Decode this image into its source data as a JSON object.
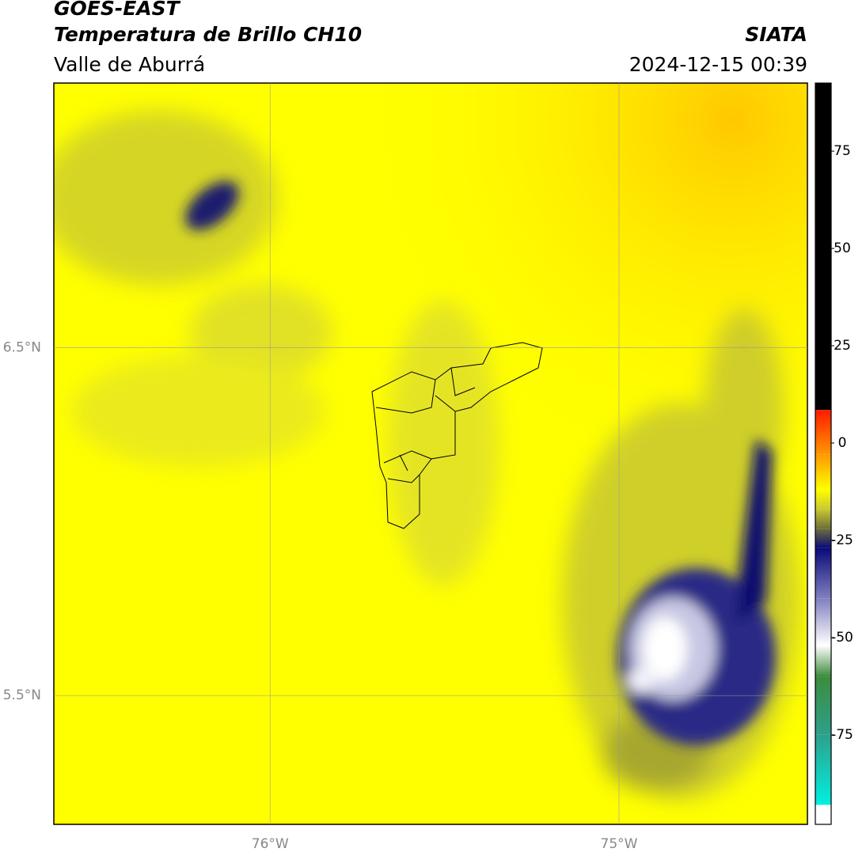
{
  "header": {
    "satellite": "GOES-EAST",
    "product": "Temperatura de Brillo CH10",
    "region": "Valle de Aburrá",
    "agency": "SIATA",
    "timestamp": "2024-12-15 00:39"
  },
  "map": {
    "lon_lim": [
      -76.62,
      -74.46
    ],
    "lat_lim": [
      5.13,
      7.26
    ],
    "lon_ticks": [
      {
        "value": -76,
        "label": "76°W"
      },
      {
        "value": -75,
        "label": "75°W"
      }
    ],
    "lat_ticks": [
      {
        "value": 6.5,
        "label": "6.5°N"
      },
      {
        "value": 5.5,
        "label": "5.5°N"
      }
    ]
  },
  "colorbar": {
    "lim": [
      -98,
      92.5
    ],
    "ticks": [
      75,
      50,
      25,
      0,
      -25,
      -50,
      -75
    ],
    "stops": [
      {
        "value": 92.5,
        "color": "#000000"
      },
      {
        "value": 8.5,
        "color": "#000000"
      },
      {
        "value": 8.5,
        "color": "#ff1a00"
      },
      {
        "value": -3,
        "color": "#ff9900"
      },
      {
        "value": -12,
        "color": "#ffff00"
      },
      {
        "value": -17,
        "color": "#c8c832"
      },
      {
        "value": -22,
        "color": "#6e6e3c"
      },
      {
        "value": -27,
        "color": "#0a0a78"
      },
      {
        "value": -40,
        "color": "#8080c0"
      },
      {
        "value": -52,
        "color": "#ffffff"
      },
      {
        "value": -60,
        "color": "#3c8c3c"
      },
      {
        "value": -75,
        "color": "#2ea08c"
      },
      {
        "value": -93,
        "color": "#00f0e0"
      },
      {
        "value": -93,
        "color": "#ffffff"
      },
      {
        "value": -98,
        "color": "#ffffff"
      }
    ]
  }
}
